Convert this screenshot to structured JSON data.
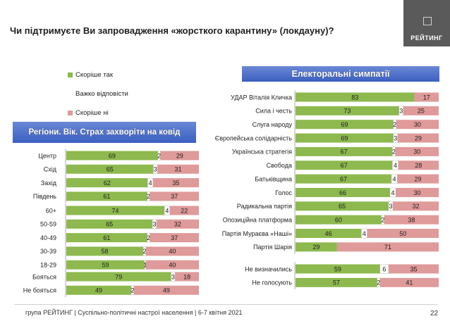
{
  "title": "Чи підтримуєте Ви запровадження «жорсткого карантину» (локдауну)?",
  "logo_text": "РЕЙТИНГ",
  "legend": [
    {
      "label": "Скоріше  так",
      "color": "#8db94e"
    },
    {
      "label": "Важко відповісти",
      "color": "#ffffff"
    },
    {
      "label": "Скоріше  ні",
      "color": "#df9a9a"
    }
  ],
  "colors": {
    "yes": "#8db94e",
    "hard": "#ffffff",
    "no": "#df9a9a",
    "banner": "#4a6fd0"
  },
  "footer": "група РЕЙТИНГ | Суспільно-політичні настрої населення | 6-7 квітня 2021",
  "page_number": "22",
  "chart_data": [
    {
      "type": "bar",
      "stacked": true,
      "orientation": "horizontal",
      "title": "Регіони. Вік. Страх захворіти на ковід",
      "series_order": [
        "Скоріше  так",
        "Важко відповісти",
        "Скоріше  ні"
      ],
      "groups": [
        {
          "rows": [
            {
              "label": "Центр",
              "values": [
                69,
                2,
                29
              ]
            },
            {
              "label": "Схід",
              "values": [
                65,
                3,
                31
              ]
            },
            {
              "label": "Захід",
              "values": [
                62,
                4,
                35
              ]
            },
            {
              "label": "Південь",
              "values": [
                61,
                2,
                37
              ]
            }
          ]
        },
        {
          "rows": [
            {
              "label": "60+",
              "values": [
                74,
                4,
                22
              ]
            },
            {
              "label": "50-59",
              "values": [
                65,
                3,
                32
              ]
            },
            {
              "label": "40-49",
              "values": [
                61,
                2,
                37
              ]
            },
            {
              "label": "30-39",
              "values": [
                58,
                2,
                40
              ]
            },
            {
              "label": "18-29",
              "values": [
                59,
                1,
                40
              ]
            }
          ]
        },
        {
          "rows": [
            {
              "label": "Бояться",
              "values": [
                79,
                3,
                18
              ]
            },
            {
              "label": "Не бояться",
              "values": [
                49,
                2,
                49
              ]
            }
          ]
        }
      ]
    },
    {
      "type": "bar",
      "stacked": true,
      "orientation": "horizontal",
      "title": "Електоральні симпатії",
      "series_order": [
        "Скоріше  так",
        "Важко відповісти",
        "Скоріше  ні"
      ],
      "groups": [
        {
          "rows": [
            {
              "label": "УДАР Віталія Кличка",
              "values": [
                83,
                0,
                17
              ]
            },
            {
              "label": "Сила і честь",
              "values": [
                73,
                3,
                25
              ]
            },
            {
              "label": "Слуга народу",
              "values": [
                69,
                2,
                30
              ]
            },
            {
              "label": "Європейська солідарність",
              "values": [
                69,
                3,
                29
              ]
            },
            {
              "label": "Українська стратегія",
              "values": [
                67,
                2,
                30
              ]
            },
            {
              "label": "Свобода",
              "values": [
                67,
                4,
                28
              ]
            },
            {
              "label": "Батьківщина",
              "values": [
                67,
                4,
                29
              ]
            },
            {
              "label": "Голос",
              "values": [
                66,
                4,
                30
              ]
            },
            {
              "label": "Радикальна партія",
              "values": [
                65,
                3,
                32
              ]
            },
            {
              "label": "Опозиційна платформа",
              "values": [
                60,
                2,
                38
              ]
            },
            {
              "label": "Партія Мураєва «Наші»",
              "values": [
                46,
                4,
                50
              ]
            },
            {
              "label": "Партія Шарія",
              "values": [
                29,
                0,
                71
              ]
            }
          ]
        },
        {
          "rows": [
            {
              "label": "Не визначились",
              "values": [
                59,
                6,
                35
              ]
            },
            {
              "label": "Не голосують",
              "values": [
                57,
                2,
                41
              ]
            }
          ]
        }
      ]
    }
  ]
}
